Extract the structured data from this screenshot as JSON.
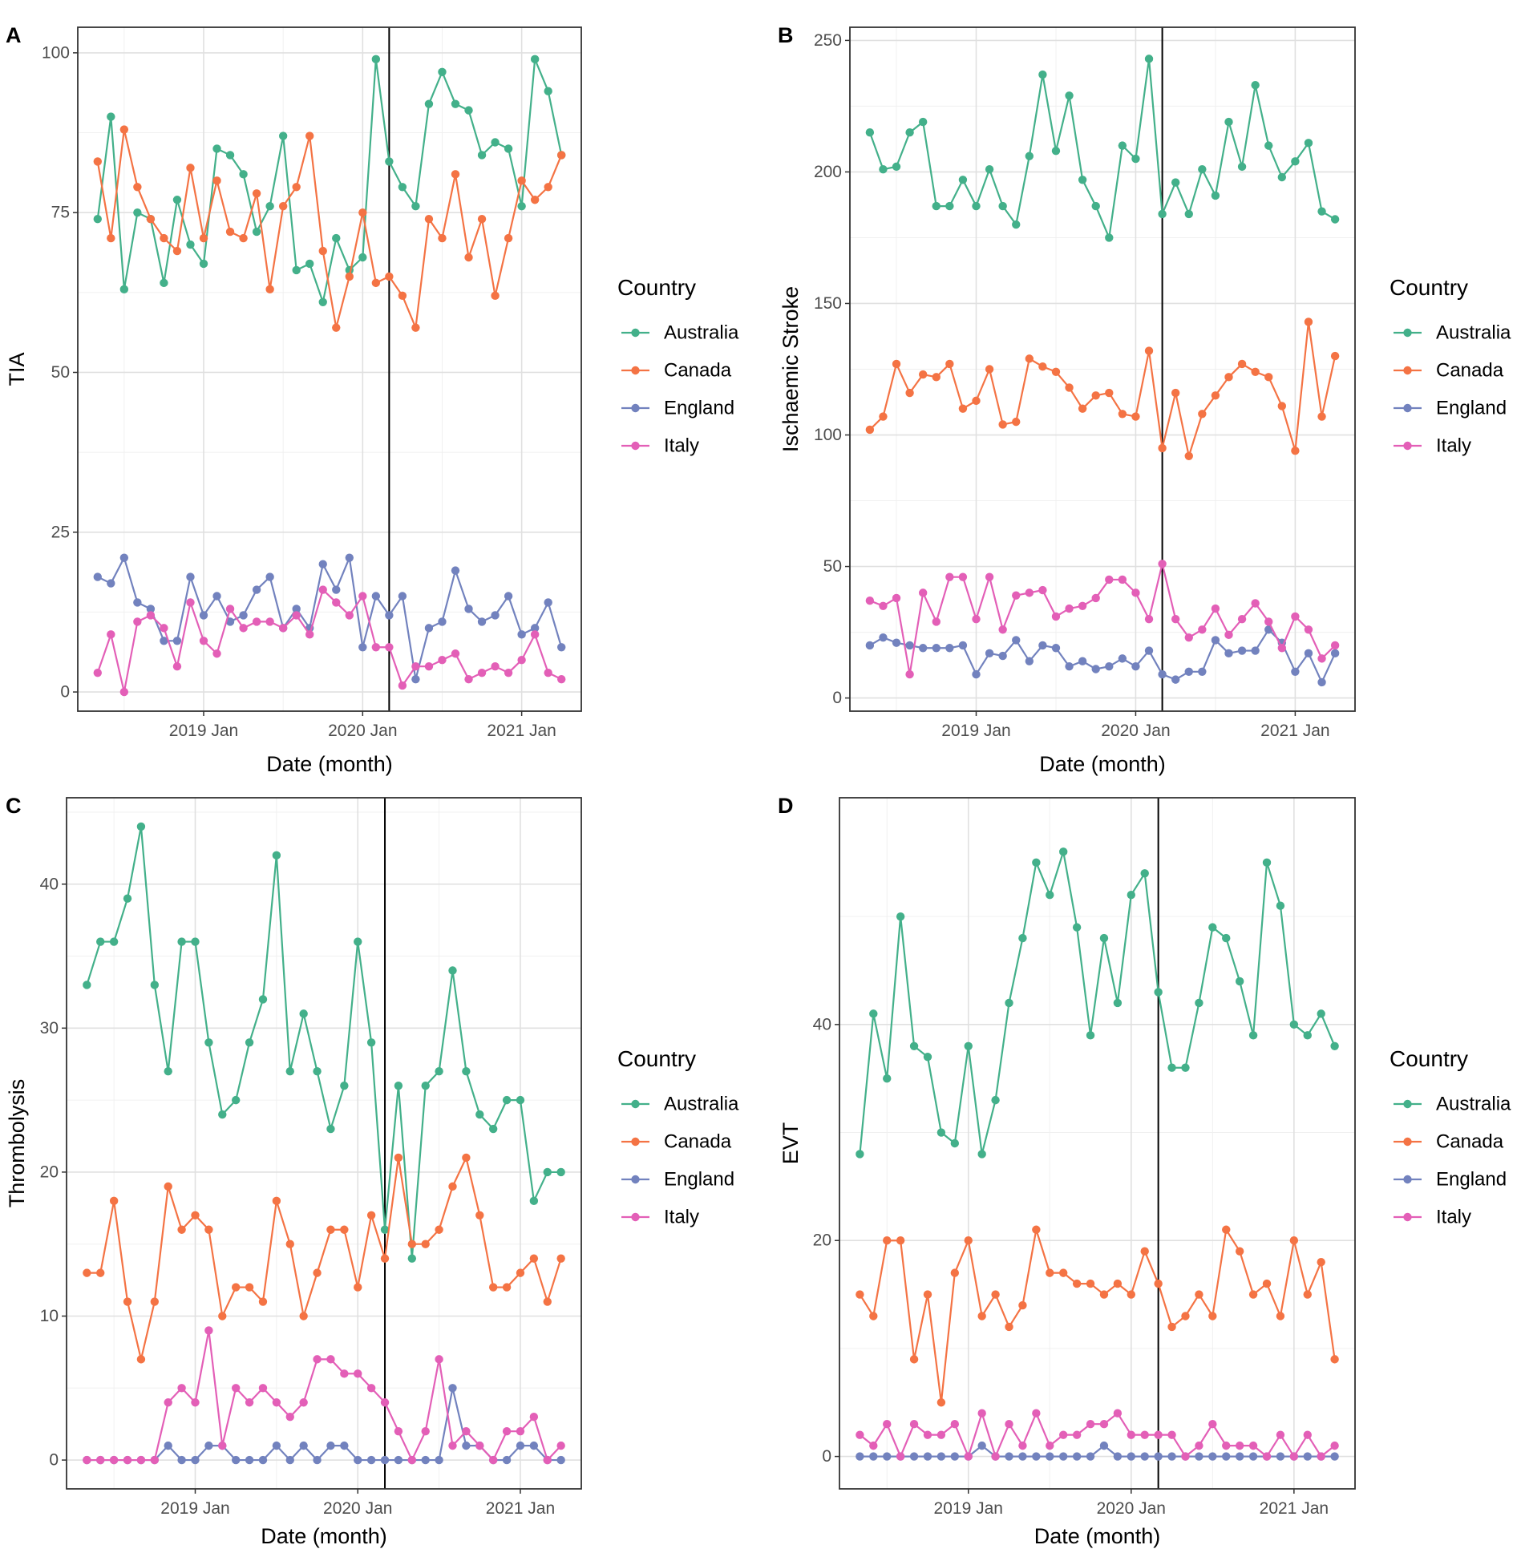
{
  "figure": {
    "legend_title": "Country",
    "series_names": [
      "Australia",
      "Canada",
      "England",
      "Italy"
    ],
    "colors": {
      "Australia": "#43b08a",
      "Canada": "#f47344",
      "England": "#7282be",
      "Italy": "#e35fb7"
    },
    "x_tick_labels": [
      "2019 Jan",
      "2020 Jan",
      "2021 Jan"
    ],
    "x_tick_months": [
      8,
      20,
      32
    ],
    "vertical_line_month": 22,
    "months_count": 36
  },
  "chart_data": [
    {
      "panel": "A",
      "type": "line",
      "xlabel": "Date (month)",
      "ylabel": "TIA",
      "ylim": [
        -3,
        104
      ],
      "yticks": [
        0,
        25,
        50,
        75,
        100
      ],
      "series": [
        {
          "name": "Australia",
          "values": [
            74,
            90,
            63,
            75,
            74,
            64,
            77,
            70,
            67,
            85,
            84,
            81,
            72,
            76,
            87,
            66,
            67,
            61,
            71,
            66,
            68,
            99,
            83,
            79,
            76,
            92,
            97,
            92,
            91,
            84,
            86,
            85,
            76,
            99,
            94,
            84
          ]
        },
        {
          "name": "Canada",
          "values": [
            83,
            71,
            88,
            79,
            74,
            71,
            69,
            82,
            71,
            80,
            72,
            71,
            78,
            63,
            76,
            79,
            87,
            69,
            57,
            65,
            75,
            64,
            65,
            62,
            57,
            74,
            71,
            81,
            68,
            74,
            62,
            71,
            80,
            77,
            79,
            84
          ]
        },
        {
          "name": "England",
          "values": [
            18,
            17,
            21,
            14,
            13,
            8,
            8,
            18,
            12,
            15,
            11,
            12,
            16,
            18,
            10,
            13,
            10,
            20,
            16,
            21,
            7,
            15,
            12,
            15,
            2,
            10,
            11,
            19,
            13,
            11,
            12,
            15,
            9,
            10,
            14,
            7
          ]
        },
        {
          "name": "Italy",
          "values": [
            3,
            9,
            0,
            11,
            12,
            10,
            4,
            14,
            8,
            6,
            13,
            10,
            11,
            11,
            10,
            12,
            9,
            16,
            14,
            12,
            15,
            7,
            7,
            1,
            4,
            4,
            5,
            6,
            2,
            3,
            4,
            3,
            5,
            9,
            3,
            2
          ]
        }
      ]
    },
    {
      "panel": "B",
      "type": "line",
      "xlabel": "Date (month)",
      "ylabel": "Ischaemic Stroke",
      "ylim": [
        -5,
        255
      ],
      "yticks": [
        0,
        50,
        100,
        150,
        200,
        250
      ],
      "series": [
        {
          "name": "Australia",
          "values": [
            215,
            201,
            202,
            215,
            219,
            187,
            187,
            197,
            187,
            201,
            187,
            180,
            206,
            237,
            208,
            229,
            197,
            187,
            175,
            210,
            205,
            243,
            184,
            196,
            184,
            201,
            191,
            219,
            202,
            233,
            210,
            198,
            204,
            211,
            185,
            182
          ]
        },
        {
          "name": "Canada",
          "values": [
            102,
            107,
            127,
            116,
            123,
            122,
            127,
            110,
            113,
            125,
            104,
            105,
            129,
            126,
            124,
            118,
            110,
            115,
            116,
            108,
            107,
            132,
            95,
            116,
            92,
            108,
            115,
            122,
            127,
            124,
            122,
            111,
            94,
            143,
            107,
            130
          ]
        },
        {
          "name": "England",
          "values": [
            20,
            23,
            21,
            20,
            19,
            19,
            19,
            20,
            9,
            17,
            16,
            22,
            14,
            20,
            19,
            12,
            14,
            11,
            12,
            15,
            12,
            18,
            9,
            7,
            10,
            10,
            22,
            17,
            18,
            18,
            26,
            21,
            10,
            17,
            6,
            17
          ]
        },
        {
          "name": "Italy",
          "values": [
            37,
            35,
            38,
            9,
            40,
            29,
            46,
            46,
            30,
            46,
            26,
            39,
            40,
            41,
            31,
            34,
            35,
            38,
            45,
            45,
            40,
            30,
            51,
            30,
            23,
            26,
            34,
            24,
            30,
            36,
            29,
            19,
            31,
            26,
            15,
            20
          ]
        }
      ]
    },
    {
      "panel": "C",
      "type": "line",
      "xlabel": "Date (month)",
      "ylabel": "Thrombolysis",
      "ylim": [
        -2,
        46
      ],
      "yticks": [
        0,
        10,
        20,
        30,
        40
      ],
      "series": [
        {
          "name": "Australia",
          "values": [
            33,
            36,
            36,
            39,
            44,
            33,
            27,
            36,
            36,
            29,
            24,
            25,
            29,
            32,
            42,
            27,
            31,
            27,
            23,
            26,
            36,
            29,
            16,
            26,
            14,
            26,
            27,
            34,
            27,
            24,
            23,
            25,
            25,
            18,
            20,
            20
          ]
        },
        {
          "name": "Canada",
          "values": [
            13,
            13,
            18,
            11,
            7,
            11,
            19,
            16,
            17,
            16,
            10,
            12,
            12,
            11,
            18,
            15,
            10,
            13,
            16,
            16,
            12,
            17,
            14,
            21,
            15,
            15,
            16,
            19,
            21,
            17,
            12,
            12,
            13,
            14,
            11,
            14
          ]
        },
        {
          "name": "England",
          "values": [
            0,
            0,
            0,
            0,
            0,
            0,
            1,
            0,
            0,
            1,
            1,
            0,
            0,
            0,
            1,
            0,
            1,
            0,
            1,
            1,
            0,
            0,
            0,
            0,
            0,
            0,
            0,
            5,
            1,
            1,
            0,
            0,
            1,
            1,
            0,
            0
          ]
        },
        {
          "name": "Italy",
          "values": [
            0,
            0,
            0,
            0,
            0,
            0,
            4,
            5,
            4,
            9,
            1,
            5,
            4,
            5,
            4,
            3,
            4,
            7,
            7,
            6,
            6,
            5,
            4,
            2,
            0,
            2,
            7,
            1,
            2,
            1,
            0,
            2,
            2,
            3,
            0,
            1
          ]
        }
      ]
    },
    {
      "panel": "D",
      "type": "line",
      "xlabel": "Date (month)",
      "ylabel": "EVT",
      "ylim": [
        -3,
        61
      ],
      "yticks": [
        0,
        20,
        40
      ],
      "series": [
        {
          "name": "Australia",
          "values": [
            28,
            41,
            35,
            50,
            38,
            37,
            30,
            29,
            38,
            28,
            33,
            42,
            48,
            55,
            52,
            56,
            49,
            39,
            48,
            42,
            52,
            54,
            43,
            36,
            36,
            42,
            49,
            48,
            44,
            39,
            55,
            51,
            40,
            39,
            41,
            38
          ]
        },
        {
          "name": "Canada",
          "values": [
            15,
            13,
            20,
            20,
            9,
            15,
            5,
            17,
            20,
            13,
            15,
            12,
            14,
            21,
            17,
            17,
            16,
            16,
            15,
            16,
            15,
            19,
            16,
            12,
            13,
            15,
            13,
            21,
            19,
            15,
            16,
            13,
            20,
            15,
            18,
            9
          ]
        },
        {
          "name": "England",
          "values": [
            0,
            0,
            0,
            0,
            0,
            0,
            0,
            0,
            0,
            1,
            0,
            0,
            0,
            0,
            0,
            0,
            0,
            0,
            1,
            0,
            0,
            0,
            0,
            0,
            0,
            0,
            0,
            0,
            0,
            0,
            0,
            0,
            0,
            0,
            0,
            0
          ]
        },
        {
          "name": "Italy",
          "values": [
            2,
            1,
            3,
            0,
            3,
            2,
            2,
            3,
            0,
            4,
            0,
            3,
            1,
            4,
            1,
            2,
            2,
            3,
            3,
            4,
            2,
            2,
            2,
            2,
            0,
            1,
            3,
            1,
            1,
            1,
            0,
            2,
            0,
            2,
            0,
            1
          ]
        }
      ]
    }
  ]
}
